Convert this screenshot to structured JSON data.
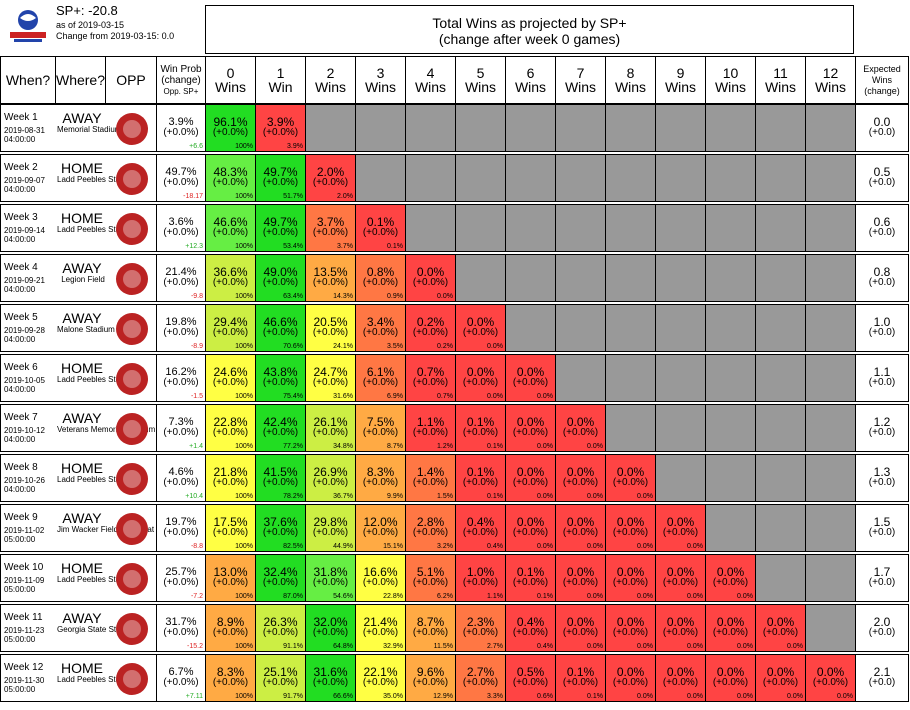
{
  "header": {
    "sp": "SP+: -20.8",
    "as_of": "as of 2019-03-15",
    "change": "Change from 2019-03-15: 0.0",
    "title_line1": "Total Wins as projected by SP+",
    "title_line2": "(change after week 0 games)"
  },
  "columns": {
    "when": "When?",
    "where": "Where?",
    "opp": "OPP",
    "win_prob": [
      "Win Prob",
      "(change)",
      "Opp. SP+"
    ],
    "wins": [
      [
        "0",
        "Wins"
      ],
      [
        "1",
        "Win"
      ],
      [
        "2",
        "Wins"
      ],
      [
        "3",
        "Wins"
      ],
      [
        "4",
        "Wins"
      ],
      [
        "5",
        "Wins"
      ],
      [
        "6",
        "Wins"
      ],
      [
        "7",
        "Wins"
      ],
      [
        "8",
        "Wins"
      ],
      [
        "9",
        "Wins"
      ],
      [
        "10",
        "Wins"
      ],
      [
        "11",
        "Wins"
      ],
      [
        "12",
        "Wins"
      ]
    ],
    "expected": [
      "Expected",
      "Wins",
      "(change)"
    ]
  },
  "colors": {
    "grey": "#999999",
    "green_dark": "#22dd22",
    "green": "#66ee44",
    "yellow_green": "#ccee44",
    "yellow": "#ffff44",
    "orange": "#ffaa44",
    "orange_red": "#ff7744",
    "red": "#ff4444",
    "pos_diff": "#22aa22",
    "neg_diff": "#dd2222"
  },
  "chart_data": {
    "type": "table",
    "weeks": [
      {
        "week": "Week 1",
        "date": "2019-08-31",
        "time": "04:00:00",
        "where": "AWAY",
        "venue": "Memorial Stadium",
        "logo": "nebraska-logo",
        "win_prob": "3.9%",
        "win_prob_change": "(+0.0%)",
        "opp_sp": "+6.6",
        "expected": "0.0",
        "expected_change": "(+0.0)",
        "cells": [
          [
            "96.1%",
            "(+0.0%)",
            "100%",
            "green_dark"
          ],
          [
            "3.9%",
            "(+0.0%)",
            "3.9%",
            "red"
          ]
        ]
      },
      {
        "week": "Week 2",
        "date": "2019-09-07",
        "time": "04:00:00",
        "where": "HOME",
        "venue": "Ladd Peebles Stadium",
        "logo": "jackson-state-logo",
        "win_prob": "49.7%",
        "win_prob_change": "(+0.0%)",
        "opp_sp": "-18.17",
        "expected": "0.5",
        "expected_change": "(+0.0)",
        "cells": [
          [
            "48.3%",
            "(+0.0%)",
            "100%",
            "green"
          ],
          [
            "49.7%",
            "(+0.0%)",
            "51.7%",
            "green_dark"
          ],
          [
            "2.0%",
            "(+0.0%)",
            "2.0%",
            "red"
          ]
        ]
      },
      {
        "week": "Week 3",
        "date": "2019-09-14",
        "time": "04:00:00",
        "where": "HOME",
        "venue": "Ladd Peebles Stadium",
        "logo": "memphis-logo",
        "win_prob": "3.6%",
        "win_prob_change": "(+0.0%)",
        "opp_sp": "+12.3",
        "expected": "0.6",
        "expected_change": "(+0.0)",
        "cells": [
          [
            "46.6%",
            "(+0.0%)",
            "100%",
            "green"
          ],
          [
            "49.7%",
            "(+0.0%)",
            "53.4%",
            "green_dark"
          ],
          [
            "3.7%",
            "(+0.0%)",
            "3.7%",
            "orange_red"
          ],
          [
            "0.1%",
            "(+0.0%)",
            "0.1%",
            "red"
          ]
        ]
      },
      {
        "week": "Week 4",
        "date": "2019-09-21",
        "time": "04:00:00",
        "where": "AWAY",
        "venue": "Legion Field",
        "logo": "uab-logo",
        "win_prob": "21.4%",
        "win_prob_change": "(+0.0%)",
        "opp_sp": "-9.8",
        "expected": "0.8",
        "expected_change": "(+0.0)",
        "cells": [
          [
            "36.6%",
            "(+0.0%)",
            "100%",
            "yellow_green"
          ],
          [
            "49.0%",
            "(+0.0%)",
            "63.4%",
            "green_dark"
          ],
          [
            "13.5%",
            "(+0.0%)",
            "14.3%",
            "orange"
          ],
          [
            "0.8%",
            "(+0.0%)",
            "0.9%",
            "orange_red"
          ],
          [
            "0.0%",
            "(+0.0%)",
            "0.0%",
            "red"
          ]
        ]
      },
      {
        "week": "Week 5",
        "date": "2019-09-28",
        "time": "04:00:00",
        "where": "AWAY",
        "venue": "Malone Stadium",
        "logo": "ulm-logo",
        "win_prob": "19.8%",
        "win_prob_change": "(+0.0%)",
        "opp_sp": "-8.9",
        "expected": "1.0",
        "expected_change": "(+0.0)",
        "cells": [
          [
            "29.4%",
            "(+0.0%)",
            "100%",
            "yellow_green"
          ],
          [
            "46.6%",
            "(+0.0%)",
            "70.6%",
            "green_dark"
          ],
          [
            "20.5%",
            "(+0.0%)",
            "24.1%",
            "yellow"
          ],
          [
            "3.4%",
            "(+0.0%)",
            "3.5%",
            "orange_red"
          ],
          [
            "0.2%",
            "(+0.0%)",
            "0.2%",
            "red"
          ],
          [
            "0.0%",
            "(+0.0%)",
            "0.0%",
            "red"
          ]
        ]
      },
      {
        "week": "Week 6",
        "date": "2019-10-05",
        "time": "04:00:00",
        "where": "HOME",
        "venue": "Ladd Peebles Stadium",
        "logo": "georgia-southern-logo",
        "win_prob": "16.2%",
        "win_prob_change": "(+0.0%)",
        "opp_sp": "-1.5",
        "expected": "1.1",
        "expected_change": "(+0.0)",
        "cells": [
          [
            "24.6%",
            "(+0.0%)",
            "100%",
            "yellow"
          ],
          [
            "43.8%",
            "(+0.0%)",
            "75.4%",
            "green_dark"
          ],
          [
            "24.7%",
            "(+0.0%)",
            "31.6%",
            "yellow"
          ],
          [
            "6.1%",
            "(+0.0%)",
            "6.9%",
            "orange_red"
          ],
          [
            "0.7%",
            "(+0.0%)",
            "0.7%",
            "red"
          ],
          [
            "0.0%",
            "(+0.0%)",
            "0.0%",
            "red"
          ],
          [
            "0.0%",
            "(+0.0%)",
            "0.0%",
            "red"
          ]
        ]
      },
      {
        "week": "Week 7",
        "date": "2019-10-12",
        "time": "04:00:00",
        "where": "AWAY",
        "venue": "Veterans Memorial Stadium",
        "logo": "troy-logo",
        "win_prob": "7.3%",
        "win_prob_change": "(+0.0%)",
        "opp_sp": "+1.4",
        "expected": "1.2",
        "expected_change": "(+0.0)",
        "cells": [
          [
            "22.8%",
            "(+0.0%)",
            "100%",
            "yellow"
          ],
          [
            "42.4%",
            "(+0.0%)",
            "77.2%",
            "green_dark"
          ],
          [
            "26.1%",
            "(+0.0%)",
            "34.8%",
            "yellow_green"
          ],
          [
            "7.5%",
            "(+0.0%)",
            "8.7%",
            "orange"
          ],
          [
            "1.1%",
            "(+0.0%)",
            "1.2%",
            "red"
          ],
          [
            "0.1%",
            "(+0.0%)",
            "0.1%",
            "red"
          ],
          [
            "0.0%",
            "(+0.0%)",
            "0.0%",
            "red"
          ],
          [
            "0.0%",
            "(+0.0%)",
            "0.0%",
            "red"
          ]
        ]
      },
      {
        "week": "Week 8",
        "date": "2019-10-26",
        "time": "04:00:00",
        "where": "HOME",
        "venue": "Ladd Peebles Stadium",
        "logo": "appalachian-state-logo",
        "win_prob": "4.6%",
        "win_prob_change": "(+0.0%)",
        "opp_sp": "+10.4",
        "expected": "1.3",
        "expected_change": "(+0.0)",
        "cells": [
          [
            "21.8%",
            "(+0.0%)",
            "100%",
            "yellow"
          ],
          [
            "41.5%",
            "(+0.0%)",
            "78.2%",
            "green_dark"
          ],
          [
            "26.9%",
            "(+0.0%)",
            "36.7%",
            "yellow_green"
          ],
          [
            "8.3%",
            "(+0.0%)",
            "9.9%",
            "orange"
          ],
          [
            "1.4%",
            "(+0.0%)",
            "1.5%",
            "orange_red"
          ],
          [
            "0.1%",
            "(+0.0%)",
            "0.1%",
            "red"
          ],
          [
            "0.0%",
            "(+0.0%)",
            "0.0%",
            "red"
          ],
          [
            "0.0%",
            "(+0.0%)",
            "0.0%",
            "red"
          ],
          [
            "0.0%",
            "(+0.0%)",
            "0.0%",
            "red"
          ]
        ]
      },
      {
        "week": "Week 9",
        "date": "2019-11-02",
        "time": "05:00:00",
        "where": "AWAY",
        "venue": "Jim Wacker Field at Bobcat Stadium",
        "logo": "texas-state-logo",
        "win_prob": "19.7%",
        "win_prob_change": "(+0.0%)",
        "opp_sp": "-8.8",
        "expected": "1.5",
        "expected_change": "(+0.0)",
        "cells": [
          [
            "17.5%",
            "(+0.0%)",
            "100%",
            "yellow"
          ],
          [
            "37.6%",
            "(+0.0%)",
            "82.5%",
            "green_dark"
          ],
          [
            "29.8%",
            "(+0.0%)",
            "44.9%",
            "yellow_green"
          ],
          [
            "12.0%",
            "(+0.0%)",
            "15.1%",
            "orange"
          ],
          [
            "2.8%",
            "(+0.0%)",
            "3.2%",
            "orange_red"
          ],
          [
            "0.4%",
            "(+0.0%)",
            "0.4%",
            "red"
          ],
          [
            "0.0%",
            "(+0.0%)",
            "0.0%",
            "red"
          ],
          [
            "0.0%",
            "(+0.0%)",
            "0.0%",
            "red"
          ],
          [
            "0.0%",
            "(+0.0%)",
            "0.0%",
            "red"
          ],
          [
            "0.0%",
            "(+0.0%)",
            "0.0%",
            "red"
          ]
        ]
      },
      {
        "week": "Week 10",
        "date": "2019-11-09",
        "time": "05:00:00",
        "where": "HOME",
        "venue": "Ladd Peebles Stadium",
        "logo": "louisiana-logo",
        "win_prob": "25.7%",
        "win_prob_change": "(+0.0%)",
        "opp_sp": "-7.2",
        "expected": "1.7",
        "expected_change": "(+0.0)",
        "cells": [
          [
            "13.0%",
            "(+0.0%)",
            "100%",
            "orange"
          ],
          [
            "32.4%",
            "(+0.0%)",
            "87.0%",
            "green_dark"
          ],
          [
            "31.8%",
            "(+0.0%)",
            "54.6%",
            "green"
          ],
          [
            "16.6%",
            "(+0.0%)",
            "22.8%",
            "yellow"
          ],
          [
            "5.1%",
            "(+0.0%)",
            "6.2%",
            "orange_red"
          ],
          [
            "1.0%",
            "(+0.0%)",
            "1.1%",
            "red"
          ],
          [
            "0.1%",
            "(+0.0%)",
            "0.1%",
            "red"
          ],
          [
            "0.0%",
            "(+0.0%)",
            "0.0%",
            "red"
          ],
          [
            "0.0%",
            "(+0.0%)",
            "0.0%",
            "red"
          ],
          [
            "0.0%",
            "(+0.0%)",
            "0.0%",
            "red"
          ],
          [
            "0.0%",
            "(+0.0%)",
            "0.0%",
            "red"
          ]
        ]
      },
      {
        "week": "Week 11",
        "date": "2019-11-23",
        "time": "05:00:00",
        "where": "AWAY",
        "venue": "Georgia State Stadium",
        "logo": "georgia-state-logo",
        "win_prob": "31.7%",
        "win_prob_change": "(+0.0%)",
        "opp_sp": "-15.2",
        "expected": "2.0",
        "expected_change": "(+0.0)",
        "cells": [
          [
            "8.9%",
            "(+0.0%)",
            "100%",
            "orange"
          ],
          [
            "26.3%",
            "(+0.0%)",
            "91.1%",
            "yellow_green"
          ],
          [
            "32.0%",
            "(+0.0%)",
            "64.8%",
            "green_dark"
          ],
          [
            "21.4%",
            "(+0.0%)",
            "32.9%",
            "yellow"
          ],
          [
            "8.7%",
            "(+0.0%)",
            "11.5%",
            "orange"
          ],
          [
            "2.3%",
            "(+0.0%)",
            "2.7%",
            "orange_red"
          ],
          [
            "0.4%",
            "(+0.0%)",
            "0.4%",
            "red"
          ],
          [
            "0.0%",
            "(+0.0%)",
            "0.0%",
            "red"
          ],
          [
            "0.0%",
            "(+0.0%)",
            "0.0%",
            "red"
          ],
          [
            "0.0%",
            "(+0.0%)",
            "0.0%",
            "red"
          ],
          [
            "0.0%",
            "(+0.0%)",
            "0.0%",
            "red"
          ],
          [
            "0.0%",
            "(+0.0%)",
            "0.0%",
            "red"
          ]
        ]
      },
      {
        "week": "Week 12",
        "date": "2019-11-30",
        "time": "05:00:00",
        "where": "HOME",
        "venue": "Ladd Peebles Stadium",
        "logo": "arkansas-state-logo",
        "win_prob": "6.7%",
        "win_prob_change": "(+0.0%)",
        "opp_sp": "+7.11",
        "expected": "2.1",
        "expected_change": "(+0.0)",
        "cells": [
          [
            "8.3%",
            "(+0.0%)",
            "100%",
            "orange"
          ],
          [
            "25.1%",
            "(+0.0%)",
            "91.7%",
            "yellow_green"
          ],
          [
            "31.6%",
            "(+0.0%)",
            "66.6%",
            "green_dark"
          ],
          [
            "22.1%",
            "(+0.0%)",
            "35.0%",
            "yellow"
          ],
          [
            "9.6%",
            "(+0.0%)",
            "12.9%",
            "orange"
          ],
          [
            "2.7%",
            "(+0.0%)",
            "3.3%",
            "orange_red"
          ],
          [
            "0.5%",
            "(+0.0%)",
            "0.6%",
            "red"
          ],
          [
            "0.1%",
            "(+0.0%)",
            "0.1%",
            "red"
          ],
          [
            "0.0%",
            "(+0.0%)",
            "0.0%",
            "red"
          ],
          [
            "0.0%",
            "(+0.0%)",
            "0.0%",
            "red"
          ],
          [
            "0.0%",
            "(+0.0%)",
            "0.0%",
            "red"
          ],
          [
            "0.0%",
            "(+0.0%)",
            "0.0%",
            "red"
          ],
          [
            "0.0%",
            "(+0.0%)",
            "0.0%",
            "red"
          ]
        ]
      }
    ]
  }
}
